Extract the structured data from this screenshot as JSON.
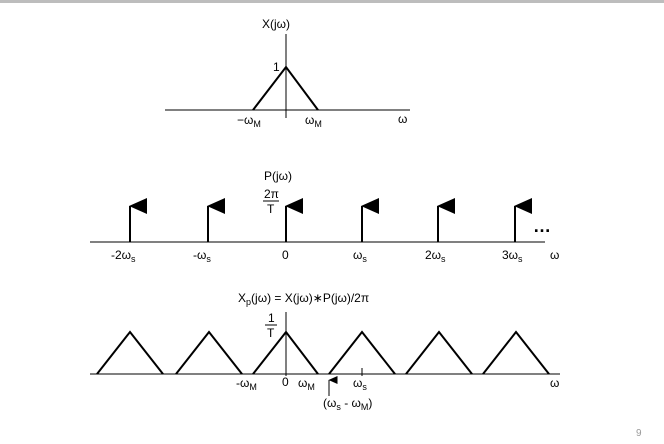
{
  "top_strip": {
    "color": "#bdbdbd"
  },
  "plot_x": {
    "title": "X(jω)",
    "peak_label": "1",
    "neg_omega": "−ω",
    "neg_omega_sub": "M",
    "pos_omega": "ω",
    "pos_omega_sub": "M",
    "axis_label": "ω"
  },
  "plot_p": {
    "title": "P(jω)",
    "amp_num": "2π",
    "amp_den": "T",
    "ellipsis": "…",
    "axis_label": "ω",
    "ticks": [
      {
        "main": "-2ω",
        "sub": "s"
      },
      {
        "main": "-ω",
        "sub": "s"
      },
      {
        "main": "0",
        "sub": ""
      },
      {
        "main": "ω",
        "sub": "s"
      },
      {
        "main": "2ω",
        "sub": "s"
      },
      {
        "main": "3ω",
        "sub": "s"
      }
    ]
  },
  "plot_xp": {
    "title_a": "X",
    "title_sub": "p",
    "title_b": "(jω) = X(jω)∗P(jω)/2π",
    "amp_num": "1",
    "amp_den": "T",
    "neg_omega": "-ω",
    "neg_omega_sub": "M",
    "zero": "0",
    "pos_omega": "ω",
    "pos_omega_sub": "M",
    "ws": "ω",
    "ws_sub": "s",
    "axis_label": "ω",
    "paren_open": "(ω",
    "paren_sub1": "s",
    "paren_mid": " - ω",
    "paren_sub2": "M",
    "paren_close": ")"
  },
  "footer": {
    "page_number": "9"
  }
}
